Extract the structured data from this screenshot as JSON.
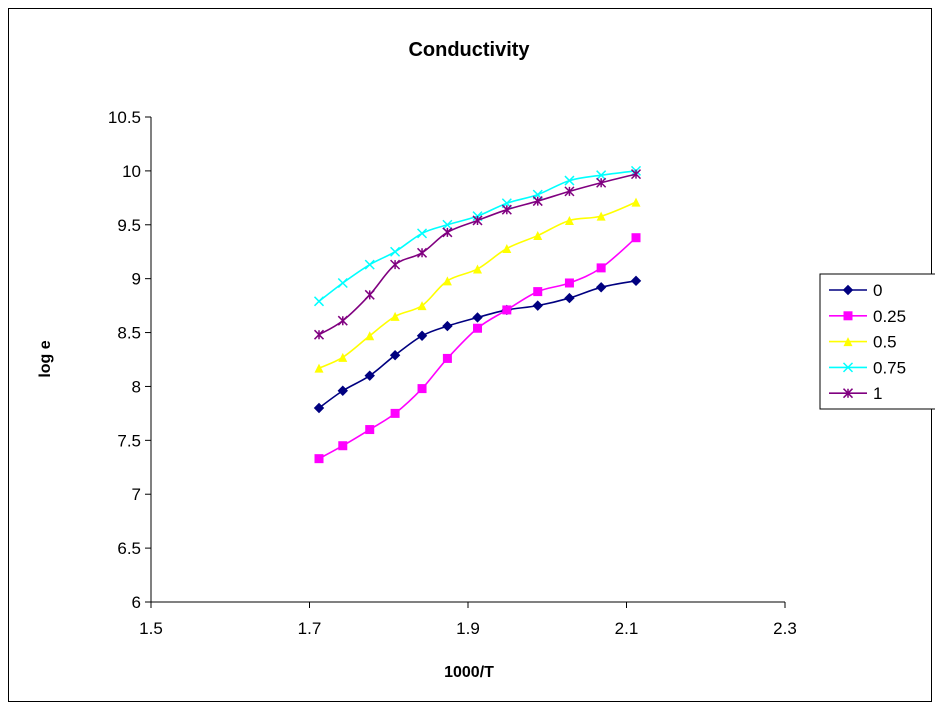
{
  "chart_data": {
    "type": "line",
    "title": "Conductivity",
    "xlabel": "1000/T",
    "ylabel": "log e",
    "xlim": [
      1.5,
      2.3
    ],
    "ylim": [
      6,
      10.5
    ],
    "x_ticks": [
      "1.5",
      "1.7",
      "1.9",
      "2.1",
      "2.3"
    ],
    "y_ticks": [
      "6",
      "6.5",
      "7",
      "7.5",
      "8",
      "8.5",
      "9",
      "9.5",
      "10",
      "10.5"
    ],
    "grid": false,
    "legend_position": "right",
    "x": [
      1.712,
      1.742,
      1.776,
      1.808,
      1.842,
      1.874,
      1.912,
      1.949,
      1.988,
      2.028,
      2.068,
      2.112
    ],
    "series": [
      {
        "name": "0",
        "color": "#000080",
        "marker": "diamond",
        "values": [
          7.8,
          7.96,
          8.1,
          8.29,
          8.47,
          8.56,
          8.64,
          8.71,
          8.75,
          8.82,
          8.92,
          8.98
        ]
      },
      {
        "name": "0.25",
        "color": "#ff00ff",
        "marker": "square",
        "values": [
          7.33,
          7.45,
          7.6,
          7.75,
          7.98,
          8.26,
          8.54,
          8.71,
          8.88,
          8.96,
          9.1,
          9.38
        ]
      },
      {
        "name": "0.5",
        "color": "#ffff00",
        "marker": "triangle",
        "values": [
          8.17,
          8.27,
          8.47,
          8.65,
          8.75,
          8.98,
          9.09,
          9.28,
          9.4,
          9.54,
          9.58,
          9.71
        ]
      },
      {
        "name": "0.75",
        "color": "#00ffff",
        "marker": "x",
        "values": [
          8.79,
          8.96,
          9.13,
          9.25,
          9.42,
          9.5,
          9.58,
          9.7,
          9.78,
          9.91,
          9.96,
          10.0
        ]
      },
      {
        "name": "1",
        "color": "#800080",
        "marker": "star",
        "values": [
          8.48,
          8.61,
          8.85,
          9.13,
          9.24,
          9.43,
          9.54,
          9.64,
          9.72,
          9.81,
          9.89,
          9.97
        ]
      }
    ]
  }
}
